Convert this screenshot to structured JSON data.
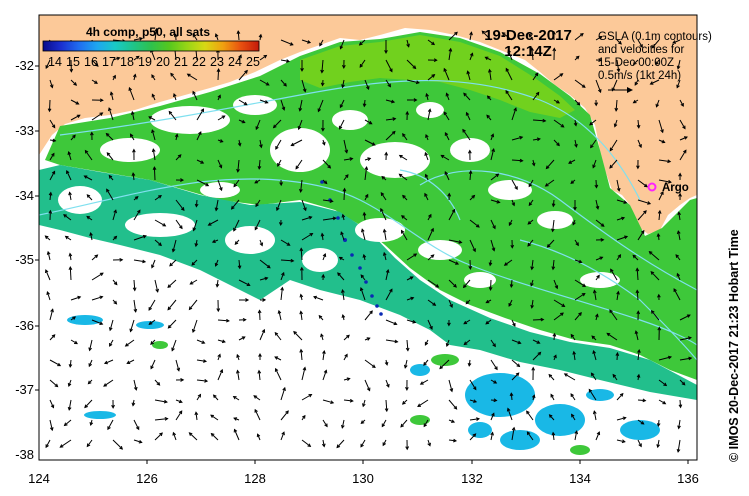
{
  "colorbar": {
    "title": "4h comp, p50, all sats",
    "ticks": [
      "14",
      "15",
      "16",
      "17",
      "18",
      "19",
      "20",
      "21",
      "22",
      "23",
      "24",
      "25"
    ],
    "colors": [
      "#0a0a8a",
      "#1a2fd0",
      "#1f6df0",
      "#1ea6f0",
      "#19c9c7",
      "#1fc58a",
      "#2ec24e",
      "#55c81e",
      "#97d616",
      "#d8d814",
      "#f0a010",
      "#e85010",
      "#c41a0a"
    ]
  },
  "annotations": {
    "date": "19-Dec-2017",
    "time": "12:14Z",
    "gsla_line1": "GSLA (0.1m contours)",
    "gsla_line2": "and velocities for",
    "gsla_line3": "15-Dec 00:00Z",
    "gsla_line4": "0.5m/s (1kt 24h)",
    "argo_label": "Argo",
    "credit": "© IMOS 20-Dec-2017 21:23 Hobart Time"
  },
  "axes": {
    "x_ticks": [
      "124",
      "126",
      "128",
      "130",
      "132",
      "134",
      "136"
    ],
    "y_ticks": [
      "-32",
      "-33",
      "-34",
      "-35",
      "-36",
      "-37",
      "-38"
    ]
  },
  "colors": {
    "land": "#fcc999",
    "ocean_no_data": "#ffffff",
    "sst_green": "#3ec83a",
    "sst_light_green": "#7ad21a",
    "sst_teal": "#22bf8c",
    "sst_cyan": "#19b8e6",
    "contour": "#7fe0ef",
    "argo": "#ff22ff"
  }
}
